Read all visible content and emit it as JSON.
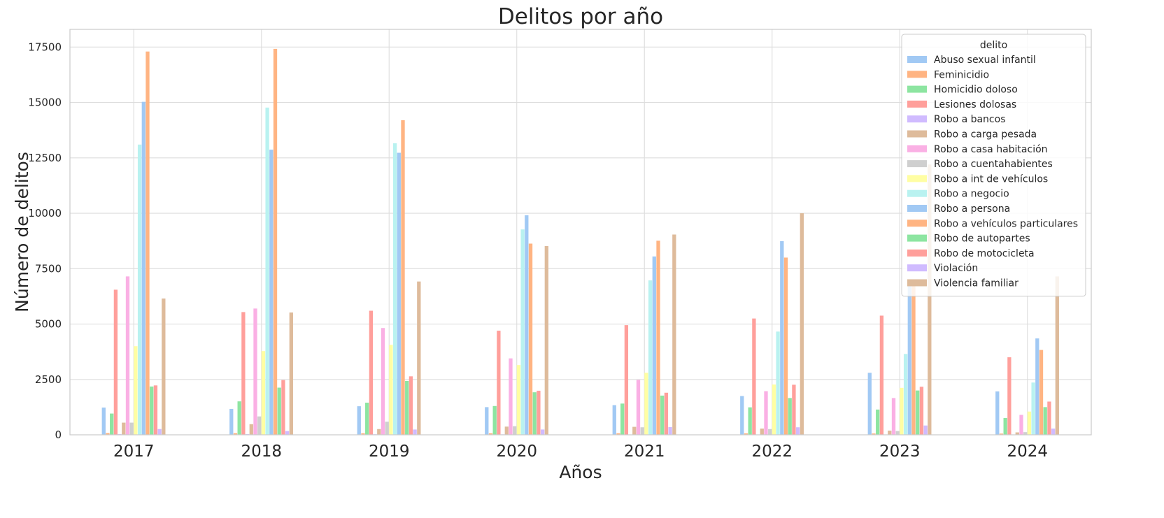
{
  "chart_data": {
    "type": "bar",
    "title": "Delitos por año",
    "xlabel": "Años",
    "ylabel": "Número de delitos",
    "categories": [
      "2017",
      "2018",
      "2019",
      "2020",
      "2021",
      "2022",
      "2023",
      "2024"
    ],
    "ylim": [
      0,
      18300
    ],
    "yticks": [
      0,
      2500,
      5000,
      7500,
      10000,
      12500,
      15000,
      17500
    ],
    "ytick_labels": [
      "0",
      "2500",
      "5000",
      "7500",
      "10000",
      "12500",
      "15000",
      "17500"
    ],
    "grid": true,
    "legend": {
      "title": "delito",
      "position": "top-right"
    },
    "series": [
      {
        "name": "Abuso sexual infantil",
        "color": "#a1c9f4",
        "values": [
          1230,
          1170,
          1290,
          1250,
          1340,
          1750,
          2800,
          1960
        ]
      },
      {
        "name": "Feminicidio",
        "color": "#ffb482",
        "values": [
          80,
          75,
          70,
          70,
          70,
          65,
          60,
          55
        ]
      },
      {
        "name": "Homicidio doloso",
        "color": "#8de5a1",
        "values": [
          960,
          1510,
          1450,
          1300,
          1410,
          1240,
          1140,
          760
        ]
      },
      {
        "name": "Lesiones dolosas",
        "color": "#ff9f9b",
        "values": [
          6550,
          5540,
          5600,
          4700,
          4950,
          5250,
          5380,
          3500
        ]
      },
      {
        "name": "Robo a bancos",
        "color": "#d0bbff",
        "values": [
          30,
          30,
          25,
          20,
          15,
          15,
          15,
          10
        ]
      },
      {
        "name": "Robo a carga pesada",
        "color": "#debb9b",
        "values": [
          550,
          480,
          260,
          370,
          360,
          280,
          190,
          110
        ]
      },
      {
        "name": "Robo a casa habitación",
        "color": "#fab0e4",
        "values": [
          7150,
          5700,
          4820,
          3450,
          2480,
          1970,
          1660,
          900
        ]
      },
      {
        "name": "Robo a cuentahabientes",
        "color": "#cfcfcf",
        "values": [
          550,
          830,
          590,
          390,
          340,
          260,
          170,
          120
        ]
      },
      {
        "name": "Robo a int de vehículos",
        "color": "#fffea3",
        "values": [
          4000,
          3780,
          4060,
          3150,
          2800,
          2270,
          2120,
          1050
        ]
      },
      {
        "name": "Robo a negocio",
        "color": "#b9f2f0",
        "values": [
          13100,
          14770,
          13160,
          9270,
          6970,
          4660,
          3650,
          2360
        ]
      },
      {
        "name": "Robo a persona",
        "color": "#a1c9f4",
        "values": [
          15030,
          12870,
          12730,
          9910,
          8050,
          8740,
          6800,
          4350
        ]
      },
      {
        "name": "Robo a vehículos particulares",
        "color": "#ffb482",
        "values": [
          17300,
          17420,
          14200,
          8630,
          8760,
          8000,
          7000,
          3830
        ]
      },
      {
        "name": "Robo de autopartes",
        "color": "#8de5a1",
        "values": [
          2180,
          2130,
          2430,
          1920,
          1770,
          1660,
          2000,
          1250
        ]
      },
      {
        "name": "Robo de motocicleta",
        "color": "#ff9f9b",
        "values": [
          2230,
          2470,
          2640,
          1990,
          1900,
          2260,
          2170,
          1500
        ]
      },
      {
        "name": "Violación",
        "color": "#d0bbff",
        "values": [
          260,
          170,
          240,
          240,
          350,
          340,
          420,
          280
        ]
      },
      {
        "name": "Violencia familiar",
        "color": "#debb9b",
        "values": [
          6150,
          5520,
          6920,
          8520,
          9040,
          10000,
          12200,
          7150
        ]
      }
    ]
  }
}
